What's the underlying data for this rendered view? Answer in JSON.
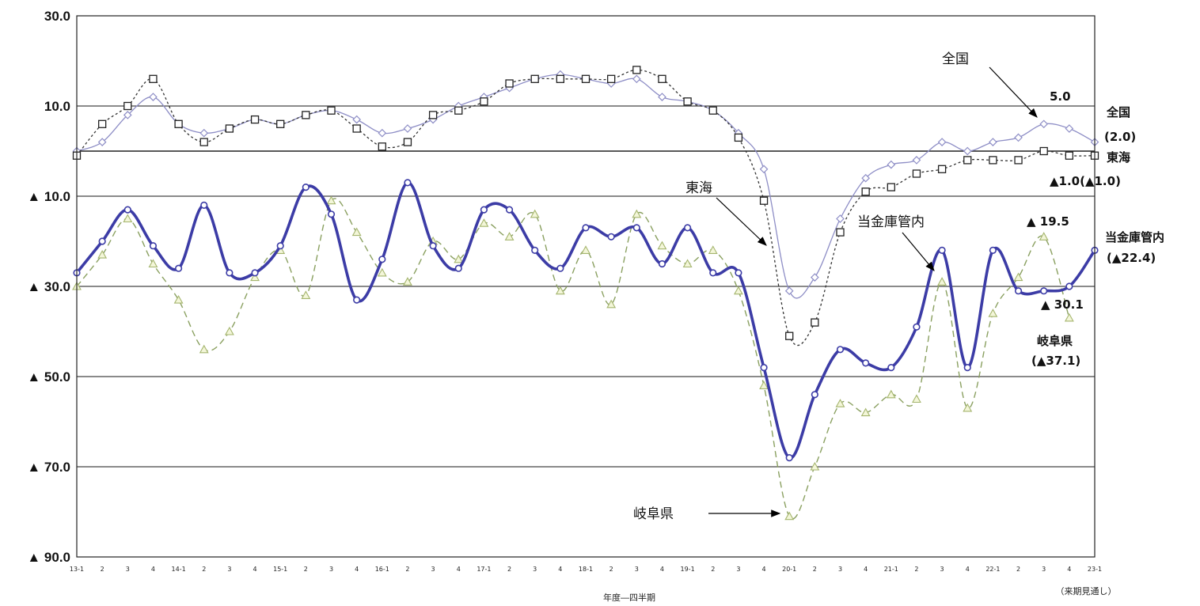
{
  "chart_data": {
    "type": "line",
    "xlabel": "年度―四半期",
    "forecast_note": "（来期見通し）",
    "ylim": [
      -90,
      30
    ],
    "y_ticks": [
      30,
      10,
      -10,
      -30,
      -50,
      -70,
      -90
    ],
    "y_tick_labels": [
      "30.0",
      "10.0",
      "▲ 10.0",
      "▲ 30.0",
      "▲ 50.0",
      "▲ 70.0",
      "▲ 90.0"
    ],
    "grid": "horizontal",
    "categories": [
      "13-1",
      "2",
      "3",
      "4",
      "14-1",
      "2",
      "3",
      "4",
      "15-1",
      "2",
      "3",
      "4",
      "16-1",
      "2",
      "3",
      "4",
      "17-1",
      "2",
      "3",
      "4",
      "18-1",
      "2",
      "3",
      "4",
      "19-1",
      "2",
      "3",
      "4",
      "20-1",
      "2",
      "3",
      "4",
      "21-1",
      "2",
      "3",
      "4",
      "22-1",
      "2",
      "3",
      "4",
      "23-1"
    ],
    "series": [
      {
        "name": "全国",
        "color": "#8e8ec6",
        "marker": "diamond",
        "values": [
          0,
          2,
          8,
          12,
          6,
          4,
          5,
          7,
          6,
          8,
          9,
          7,
          4,
          5,
          7,
          10,
          12,
          14,
          16,
          17,
          16,
          15,
          16,
          12,
          11,
          9,
          4,
          -4,
          -31,
          -28,
          -15,
          -6,
          -3,
          -2,
          2,
          0,
          2,
          3,
          6,
          5,
          2
        ]
      },
      {
        "name": "東海",
        "color": "#333333",
        "marker": "square",
        "values": [
          -1,
          6,
          10,
          16,
          6,
          2,
          5,
          7,
          6,
          8,
          9,
          5,
          1,
          2,
          8,
          9,
          11,
          15,
          16,
          16,
          16,
          16,
          18,
          16,
          11,
          9,
          3,
          -11,
          -41,
          -38,
          -18,
          -9,
          -8,
          -5,
          -4,
          -2,
          -2,
          -2,
          0,
          -1,
          -1
        ]
      },
      {
        "name": "当金庫管内",
        "color": "#3c3ca6",
        "marker": "circle",
        "values": [
          -27,
          -20,
          -13,
          -21,
          -26,
          -12,
          -27,
          -27,
          -21,
          -8,
          -14,
          -33,
          -24,
          -7,
          -21,
          -26,
          -13,
          -13,
          -22,
          -26,
          -17,
          -19,
          -17,
          -25,
          -17,
          -27,
          -27,
          -48,
          -68,
          -54,
          -44,
          -47,
          -48,
          -39,
          -22,
          -48,
          -22,
          -31,
          -31,
          -30,
          -22
        ]
      },
      {
        "name": "岐阜県",
        "color": "#8aa060",
        "marker": "triangle",
        "values": [
          -30,
          -23,
          -15,
          -25,
          -33,
          -44,
          -40,
          -28,
          -22,
          -32,
          -11,
          -18,
          -27,
          -29,
          -20,
          -24,
          -16,
          -19,
          -14,
          -31,
          -22,
          -34,
          -14,
          -21,
          -25,
          -22,
          -31,
          -52,
          -81,
          -70,
          -56,
          -58,
          -54,
          -55,
          -29,
          -57,
          -36,
          -28,
          -19,
          -37,
          null
        ]
      }
    ],
    "annotations": {
      "zenkoku_value": "5.0",
      "zenkoku_name": "全国",
      "zenkoku_forecast": "(2.0)",
      "tokai_name": "東海",
      "tokai_value": "▲1.0(▲1.0)",
      "kanai_peak": "▲ 19.5",
      "kanai_name": "当金庫管内",
      "kanai_forecast": "(▲22.4)",
      "kanai_value": "▲ 30.1",
      "gifu_name": "岐阜県",
      "gifu_forecast": "(▲37.1)",
      "callout_zenkoku": "全国",
      "callout_tokai": "東海",
      "callout_kanai": "当金庫管内",
      "callout_gifu": "岐阜県"
    }
  }
}
